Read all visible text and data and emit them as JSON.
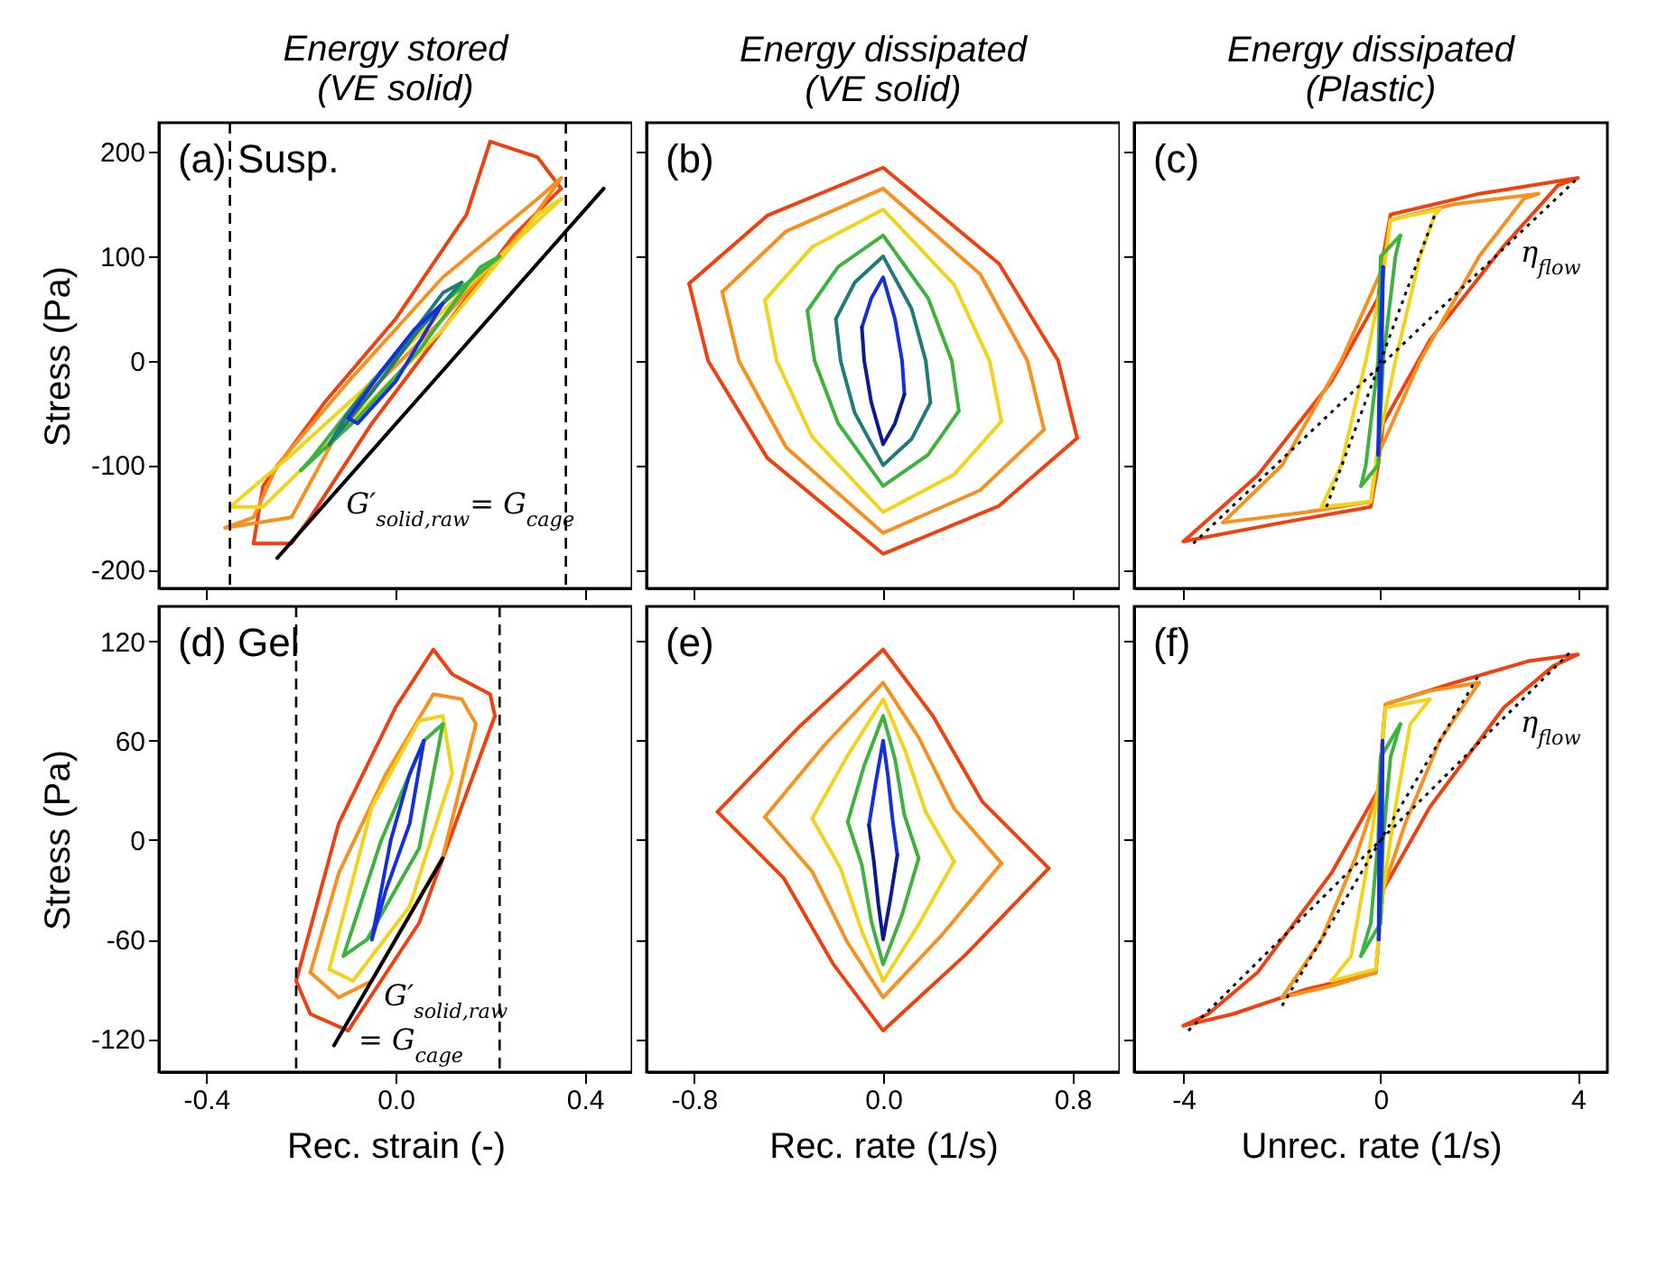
{
  "chart_data": [
    {
      "type": "line",
      "title": "Energy stored\n(VE solid)",
      "ylabel": "Stress (Pa)",
      "xlim": [
        -0.5,
        0.5
      ],
      "ylim": [
        -218,
        228
      ],
      "xticks": [
        -0.4,
        0,
        0.4
      ],
      "yticks": [
        -200,
        -100,
        0,
        100,
        200
      ],
      "tick_labels": "y",
      "grid": false,
      "annotations": [
        "(a) Susp.",
        {
          "text": "G′$_{solid,raw}$= G$_{cage}$",
          "x": -0.15,
          "y": -137.7
        }
      ],
      "ref_lines": [
        {
          "axis": "x",
          "value": -0.35,
          "color": "#000000",
          "line_style": "dashed"
        },
        {
          "axis": "x",
          "value": 0.36,
          "color": "#000000",
          "line_style": "dashed"
        }
      ],
      "series": [
        {
          "color": "#f0400f",
          "x": [
            -0.3,
            -0.28,
            -0.15,
            0,
            0.15,
            0.2,
            0.3,
            0.35
          ],
          "values": [
            -175,
            -120,
            -40,
            40,
            140,
            210,
            195,
            165
          ]
        },
        {
          "color": "#f0400f",
          "x": [
            -0.3,
            -0.22,
            -0.18,
            -0.05,
            0.1,
            0.25,
            0.35
          ],
          "values": [
            -175,
            -175,
            -150,
            -60,
            30,
            120,
            165
          ]
        },
        {
          "color": "#f7901e",
          "x": [
            -0.36,
            -0.3,
            -0.25,
            -0.1,
            0.1,
            0.3,
            0.35
          ],
          "values": [
            -160,
            -150,
            -100,
            -20,
            80,
            155,
            175
          ]
        },
        {
          "color": "#f7901e",
          "x": [
            -0.36,
            -0.22,
            -0.1,
            0.1,
            0.28,
            0.35
          ],
          "values": [
            -160,
            -150,
            -50,
            40,
            130,
            175
          ]
        },
        {
          "color": "#f2d31b",
          "x": [
            -0.35,
            -0.22,
            -0.05,
            0.15,
            0.35
          ],
          "values": [
            -140,
            -90,
            -20,
            70,
            155
          ]
        },
        {
          "color": "#f2d31b",
          "x": [
            -0.35,
            -0.28,
            -0.1,
            0.1,
            0.3,
            0.35
          ],
          "values": [
            -140,
            -140,
            -60,
            30,
            140,
            155
          ]
        },
        {
          "color": "#3db33d",
          "x": [
            -0.2,
            -0.08,
            0.05,
            0.18,
            0.22
          ],
          "values": [
            -105,
            -55,
            10,
            90,
            100
          ]
        },
        {
          "color": "#3db33d",
          "x": [
            -0.2,
            -0.18,
            -0.05,
            0.1,
            0.22
          ],
          "values": [
            -105,
            -95,
            -20,
            55,
            100
          ]
        },
        {
          "color": "#1f7a78",
          "x": [
            -0.14,
            -0.05,
            0.05,
            0.14
          ],
          "values": [
            -80,
            -30,
            30,
            75
          ]
        },
        {
          "color": "#1f7a78",
          "x": [
            -0.14,
            -0.1,
            0,
            0.1,
            0.14
          ],
          "values": [
            -80,
            -50,
            5,
            65,
            75
          ]
        },
        {
          "color": "#1530d8",
          "x": [
            -0.1,
            -0.03,
            0.04,
            0.1
          ],
          "values": [
            -55,
            -10,
            30,
            55
          ]
        },
        {
          "color": "#1530d8",
          "x": [
            -0.1,
            -0.08,
            0,
            0.08,
            0.1
          ],
          "values": [
            -55,
            -60,
            -20,
            40,
            55
          ]
        },
        {
          "color": "#000000",
          "x": [
            -0.25,
            0.44
          ],
          "values": [
            -189,
            165
          ]
        }
      ]
    },
    {
      "type": "line",
      "title": "Energy dissipated\n(VE solid)",
      "xlim": [
        -1,
        1
      ],
      "ylim": [
        -218,
        228
      ],
      "xticks": [
        -0.8,
        0,
        0.8
      ],
      "yticks": [
        -200,
        -100,
        0,
        100,
        200
      ],
      "tick_labels": false,
      "grid": false,
      "annotations": [
        "(b)"
      ],
      "series": [
        {
          "color": "#f0400f",
          "x": [
            -0.82,
            -0.49,
            0,
            0.49,
            0.74,
            0.82
          ],
          "values": [
            74,
            139,
            185,
            93,
            0,
            -74
          ]
        },
        {
          "color": "#f0400f",
          "x": [
            -0.82,
            -0.74,
            -0.49,
            0,
            0.49,
            0.82
          ],
          "values": [
            74,
            0,
            -93,
            -185,
            -139,
            -74
          ]
        },
        {
          "color": "#f7901e",
          "x": [
            -0.68,
            -0.41,
            0,
            0.41,
            0.61,
            0.68
          ],
          "values": [
            66,
            124,
            165,
            83,
            0,
            -66
          ]
        },
        {
          "color": "#f7901e",
          "x": [
            -0.68,
            -0.61,
            -0.41,
            0,
            0.41,
            0.68
          ],
          "values": [
            66,
            0,
            -83,
            -165,
            -124,
            -66
          ]
        },
        {
          "color": "#f2d31b",
          "x": [
            -0.5,
            -0.3,
            0,
            0.3,
            0.45,
            0.5
          ],
          "values": [
            58,
            109,
            145,
            73,
            0,
            -58
          ]
        },
        {
          "color": "#f2d31b",
          "x": [
            -0.5,
            -0.45,
            -0.3,
            0,
            0.3,
            0.5
          ],
          "values": [
            58,
            0,
            -73,
            -145,
            -109,
            -58
          ]
        },
        {
          "color": "#3db33d",
          "x": [
            -0.32,
            -0.19,
            0,
            0.19,
            0.29,
            0.32
          ],
          "values": [
            48,
            90,
            120,
            60,
            0,
            -48
          ]
        },
        {
          "color": "#3db33d",
          "x": [
            -0.32,
            -0.29,
            -0.19,
            0,
            0.19,
            0.32
          ],
          "values": [
            48,
            0,
            -60,
            -120,
            -90,
            -48
          ]
        },
        {
          "color": "#1f7a78",
          "x": [
            -0.2,
            -0.12,
            0,
            0.12,
            0.18,
            0.2
          ],
          "values": [
            40,
            75,
            100,
            50,
            0,
            -40
          ]
        },
        {
          "color": "#1f7a78",
          "x": [
            -0.2,
            -0.18,
            -0.12,
            0,
            0.12,
            0.2
          ],
          "values": [
            40,
            0,
            -50,
            -100,
            -75,
            -40
          ]
        },
        {
          "color": "#1530d8",
          "x": [
            -0.09,
            -0.05,
            0,
            0.05,
            0.08,
            0.09
          ],
          "values": [
            32,
            60,
            80,
            40,
            0,
            -32
          ]
        },
        {
          "color": "#0c1a8a",
          "x": [
            -0.09,
            -0.08,
            -0.05,
            0,
            0.05,
            0.09
          ],
          "values": [
            32,
            0,
            -40,
            -80,
            -60,
            -32
          ]
        }
      ]
    },
    {
      "type": "line",
      "title": "Energy dissipated\n(Plastic)",
      "xlim": [
        -5,
        4.6
      ],
      "ylim": [
        -218,
        228
      ],
      "xticks": [
        -4,
        0,
        4
      ],
      "yticks": [
        -200,
        -100,
        0,
        100,
        200
      ],
      "tick_labels": false,
      "grid": false,
      "annotations": [
        "(c)",
        {
          "text": "η$_{flow}$",
          "x": 2.4,
          "y": 103.2
        }
      ],
      "series": [
        {
          "color": "#f0400f",
          "x": [
            -4,
            -2,
            -0.2,
            -0.05,
            0.05,
            1,
            2.5,
            3.6,
            4
          ],
          "values": [
            -173,
            -155,
            -140,
            -100,
            -60,
            20,
            110,
            168,
            175
          ]
        },
        {
          "color": "#f0400f",
          "x": [
            -4,
            -2.5,
            -1,
            -0.05,
            0.05,
            0.2,
            2,
            4
          ],
          "values": [
            -173,
            -110,
            -20,
            60,
            100,
            140,
            160,
            175
          ]
        },
        {
          "color": "#f7901e",
          "x": [
            -3.2,
            -1.5,
            -0.2,
            -0.05,
            0.8,
            2,
            2.9,
            3.2
          ],
          "values": [
            -155,
            -145,
            -135,
            -90,
            0,
            100,
            155,
            160
          ]
        },
        {
          "color": "#f7901e",
          "x": [
            -3.2,
            -2,
            -0.8,
            0.05,
            0.2,
            1.5,
            3.2
          ],
          "values": [
            -155,
            -100,
            0,
            90,
            135,
            150,
            160
          ]
        },
        {
          "color": "#f2d31b",
          "x": [
            -1.2,
            -0.2,
            -0.05,
            0.3,
            0.8,
            1.1,
            1.2
          ],
          "values": [
            -140,
            -135,
            -80,
            0,
            100,
            140,
            145
          ]
        },
        {
          "color": "#f2d31b",
          "x": [
            -1.2,
            -0.8,
            -0.3,
            0.05,
            0.2,
            1.2
          ],
          "values": [
            -140,
            -100,
            0,
            80,
            135,
            145
          ]
        },
        {
          "color": "#3db33d",
          "x": [
            -0.4,
            -0.05,
            0.05,
            0.3,
            0.4
          ],
          "values": [
            -120,
            -100,
            0,
            100,
            120
          ]
        },
        {
          "color": "#3db33d",
          "x": [
            -0.4,
            -0.3,
            -0.05,
            0,
            0.4
          ],
          "values": [
            -120,
            -100,
            0,
            100,
            120
          ]
        },
        {
          "color": "#1530d8",
          "x": [
            -0.05,
            0.02,
            0.05
          ],
          "values": [
            -90,
            0,
            90
          ]
        },
        {
          "color": "#1530d8",
          "x": [
            -0.05,
            -0.02,
            0.05
          ],
          "values": [
            -90,
            0,
            90
          ]
        },
        {
          "color": "#000000",
          "line_style": "dotted",
          "x": [
            -3.8,
            4
          ],
          "values": [
            -175,
            175
          ]
        },
        {
          "color": "#000000",
          "line_style": "dotted",
          "x": [
            -1.1,
            1.1
          ],
          "values": [
            -140,
            140
          ]
        }
      ]
    },
    {
      "type": "line",
      "xlabel": "Rec. strain (-)",
      "ylabel": "Stress (Pa)",
      "xlim": [
        -0.5,
        0.5
      ],
      "ylim": [
        -140,
        141
      ],
      "xticks": [
        -0.4,
        {
          "value": 0,
          "label": "0.0"
        },
        0.4
      ],
      "yticks": [
        -120,
        -60,
        0,
        60,
        120
      ],
      "grid": false,
      "annotations": [
        "(d) Gel",
        {
          "text": "G′$_{solid,raw}$",
          "x": -0.07,
          "y": -94.5
        },
        {
          "text": "= G$_{cage}$",
          "x": -0.124,
          "y": -121.1
        }
      ],
      "ref_lines": [
        {
          "axis": "x",
          "value": -0.21,
          "color": "#000000",
          "line_style": "dashed"
        },
        {
          "axis": "x",
          "value": 0.22,
          "color": "#000000",
          "line_style": "dashed"
        }
      ],
      "series": [
        {
          "color": "#f0400f",
          "x": [
            -0.21,
            -0.18,
            -0.1,
            0.05,
            0.21
          ],
          "values": [
            -85,
            -105,
            -115,
            -50,
            75
          ]
        },
        {
          "color": "#f0400f",
          "x": [
            -0.21,
            -0.12,
            0,
            0.08,
            0.12,
            0.2,
            0.21
          ],
          "values": [
            -85,
            10,
            80,
            115,
            100,
            88,
            75
          ]
        },
        {
          "color": "#f7901e",
          "x": [
            -0.18,
            -0.12,
            -0.05,
            0.1,
            0.17
          ],
          "values": [
            -80,
            -95,
            -85,
            -10,
            70
          ]
        },
        {
          "color": "#f7901e",
          "x": [
            -0.18,
            -0.12,
            -0.02,
            0.08,
            0.14,
            0.17
          ],
          "values": [
            -80,
            -20,
            40,
            88,
            85,
            70
          ]
        },
        {
          "color": "#f2d31b",
          "x": [
            -0.14,
            -0.09,
            0.03,
            0.12
          ],
          "values": [
            -78,
            -85,
            -40,
            40
          ]
        },
        {
          "color": "#f2d31b",
          "x": [
            -0.14,
            -0.05,
            0.05,
            0.1,
            0.12
          ],
          "values": [
            -78,
            20,
            72,
            75,
            40
          ]
        },
        {
          "color": "#3db33d",
          "x": [
            -0.11,
            -0.06,
            0.05,
            0.1
          ],
          "values": [
            -70,
            -60,
            -5,
            70
          ]
        },
        {
          "color": "#3db33d",
          "x": [
            -0.11,
            -0.03,
            0.06,
            0.1
          ],
          "values": [
            -70,
            0,
            60,
            70
          ]
        },
        {
          "color": "#1530d8",
          "x": [
            -0.05,
            -0.02,
            0.03,
            0.06
          ],
          "values": [
            -60,
            -30,
            10,
            60
          ]
        },
        {
          "color": "#1530d8",
          "x": [
            -0.05,
            -0.01,
            0.03,
            0.06
          ],
          "values": [
            -60,
            0,
            40,
            60
          ]
        },
        {
          "color": "#000000",
          "x": [
            -0.13,
            0.1
          ],
          "values": [
            -124,
            -11
          ]
        }
      ]
    },
    {
      "type": "line",
      "xlabel": "Rec. rate (1/s)",
      "xlim": [
        -1,
        1
      ],
      "ylim": [
        -140,
        141
      ],
      "xticks": [
        -0.8,
        {
          "value": 0,
          "label": "0.0"
        },
        0.8
      ],
      "yticks": [
        -120,
        -60,
        0,
        60,
        120
      ],
      "tick_labels": "x",
      "grid": false,
      "annotations": [
        "(e)"
      ],
      "series": [
        {
          "color": "#f0400f",
          "x": [
            -0.7,
            -0.35,
            0,
            0.21,
            0.42,
            0.7
          ],
          "values": [
            17,
            69,
            115,
            75,
            23,
            -17
          ]
        },
        {
          "color": "#f0400f",
          "x": [
            -0.7,
            -0.42,
            -0.21,
            0,
            0.35,
            0.7
          ],
          "values": [
            17,
            -23,
            -75,
            -115,
            -69,
            -17
          ]
        },
        {
          "color": "#f7901e",
          "x": [
            -0.5,
            -0.25,
            0,
            0.15,
            0.3,
            0.5
          ],
          "values": [
            14,
            57,
            95,
            62,
            19,
            -14
          ]
        },
        {
          "color": "#f7901e",
          "x": [
            -0.5,
            -0.3,
            -0.15,
            0,
            0.25,
            0.5
          ],
          "values": [
            14,
            -19,
            -62,
            -95,
            -57,
            -14
          ]
        },
        {
          "color": "#f2d31b",
          "x": [
            -0.3,
            -0.15,
            0,
            0.09,
            0.18,
            0.3
          ],
          "values": [
            13,
            51,
            85,
            55,
            17,
            -13
          ]
        },
        {
          "color": "#f2d31b",
          "x": [
            -0.3,
            -0.18,
            -0.09,
            0,
            0.15,
            0.3
          ],
          "values": [
            13,
            -17,
            -55,
            -85,
            -51,
            -13
          ]
        },
        {
          "color": "#3db33d",
          "x": [
            -0.15,
            -0.08,
            0,
            0.05,
            0.09,
            0.15
          ],
          "values": [
            11,
            45,
            75,
            49,
            15,
            -11
          ]
        },
        {
          "color": "#3db33d",
          "x": [
            -0.15,
            -0.09,
            -0.05,
            0,
            0.08,
            0.15
          ],
          "values": [
            11,
            -15,
            -49,
            -75,
            -45,
            -11
          ]
        },
        {
          "color": "#1530d8",
          "x": [
            -0.06,
            -0.03,
            0,
            0.02,
            0.04,
            0.06
          ],
          "values": [
            9,
            36,
            60,
            39,
            12,
            -9
          ]
        },
        {
          "color": "#0c1a8a",
          "x": [
            -0.06,
            -0.04,
            -0.02,
            0,
            0.03,
            0.06
          ],
          "values": [
            9,
            -12,
            -39,
            -60,
            -36,
            -9
          ]
        }
      ]
    },
    {
      "type": "line",
      "xlabel": "Unrec. rate (1/s)",
      "xlim": [
        -5,
        4.6
      ],
      "ylim": [
        -140,
        141
      ],
      "xticks": [
        -4,
        0,
        4
      ],
      "yticks": [
        -120,
        -60,
        0,
        60,
        120
      ],
      "tick_labels": "x",
      "grid": false,
      "annotations": [
        "(f)",
        {
          "text": "η$_{flow}$",
          "x": 2.4,
          "y": 70.8
        }
      ],
      "series": [
        {
          "color": "#f0400f",
          "x": [
            -4,
            -3,
            -1.5,
            -0.1,
            0.05,
            1,
            2.5,
            3.5,
            4
          ],
          "values": [
            -112,
            -105,
            -90,
            -80,
            -30,
            20,
            80,
            105,
            112
          ]
        },
        {
          "color": "#f0400f",
          "x": [
            -4,
            -3.5,
            -2.5,
            -1,
            -0.05,
            0.1,
            1.5,
            3,
            4
          ],
          "values": [
            -112,
            -105,
            -80,
            -20,
            30,
            82,
            95,
            108,
            112
          ]
        },
        {
          "color": "#f7901e",
          "x": [
            -2,
            -1,
            -0.1,
            0.05,
            0.5,
            1.2,
            2
          ],
          "values": [
            -95,
            -88,
            -80,
            -30,
            10,
            60,
            95
          ]
        },
        {
          "color": "#f7901e",
          "x": [
            -2,
            -1.2,
            -0.5,
            -0.05,
            0.1,
            1,
            2
          ],
          "values": [
            -95,
            -60,
            -10,
            30,
            82,
            90,
            95
          ]
        },
        {
          "color": "#f2d31b",
          "x": [
            -1,
            -0.1,
            0.05,
            0.3,
            0.6,
            1
          ],
          "values": [
            -85,
            -78,
            -30,
            20,
            70,
            85
          ]
        },
        {
          "color": "#f2d31b",
          "x": [
            -1,
            -0.6,
            -0.3,
            -0.05,
            0.1,
            1
          ],
          "values": [
            -85,
            -70,
            -20,
            30,
            80,
            85
          ]
        },
        {
          "color": "#3db33d",
          "x": [
            -0.4,
            0,
            0.05,
            0.2,
            0.4
          ],
          "values": [
            -70,
            -50,
            0,
            50,
            70
          ]
        },
        {
          "color": "#3db33d",
          "x": [
            -0.4,
            -0.2,
            -0.05,
            0,
            0.4
          ],
          "values": [
            -70,
            -50,
            0,
            50,
            70
          ]
        },
        {
          "color": "#1530d8",
          "x": [
            -0.04,
            0.03,
            0.04
          ],
          "values": [
            -60,
            0,
            60
          ]
        },
        {
          "color": "#1530d8",
          "x": [
            -0.04,
            -0.03,
            0.04
          ],
          "values": [
            -60,
            0,
            60
          ]
        },
        {
          "color": "#000000",
          "line_style": "dotted",
          "x": [
            -3.9,
            3.9
          ],
          "values": [
            -115,
            115
          ]
        },
        {
          "color": "#000000",
          "line_style": "dotted",
          "x": [
            -2,
            2
          ],
          "values": [
            -100,
            100
          ]
        }
      ]
    }
  ]
}
